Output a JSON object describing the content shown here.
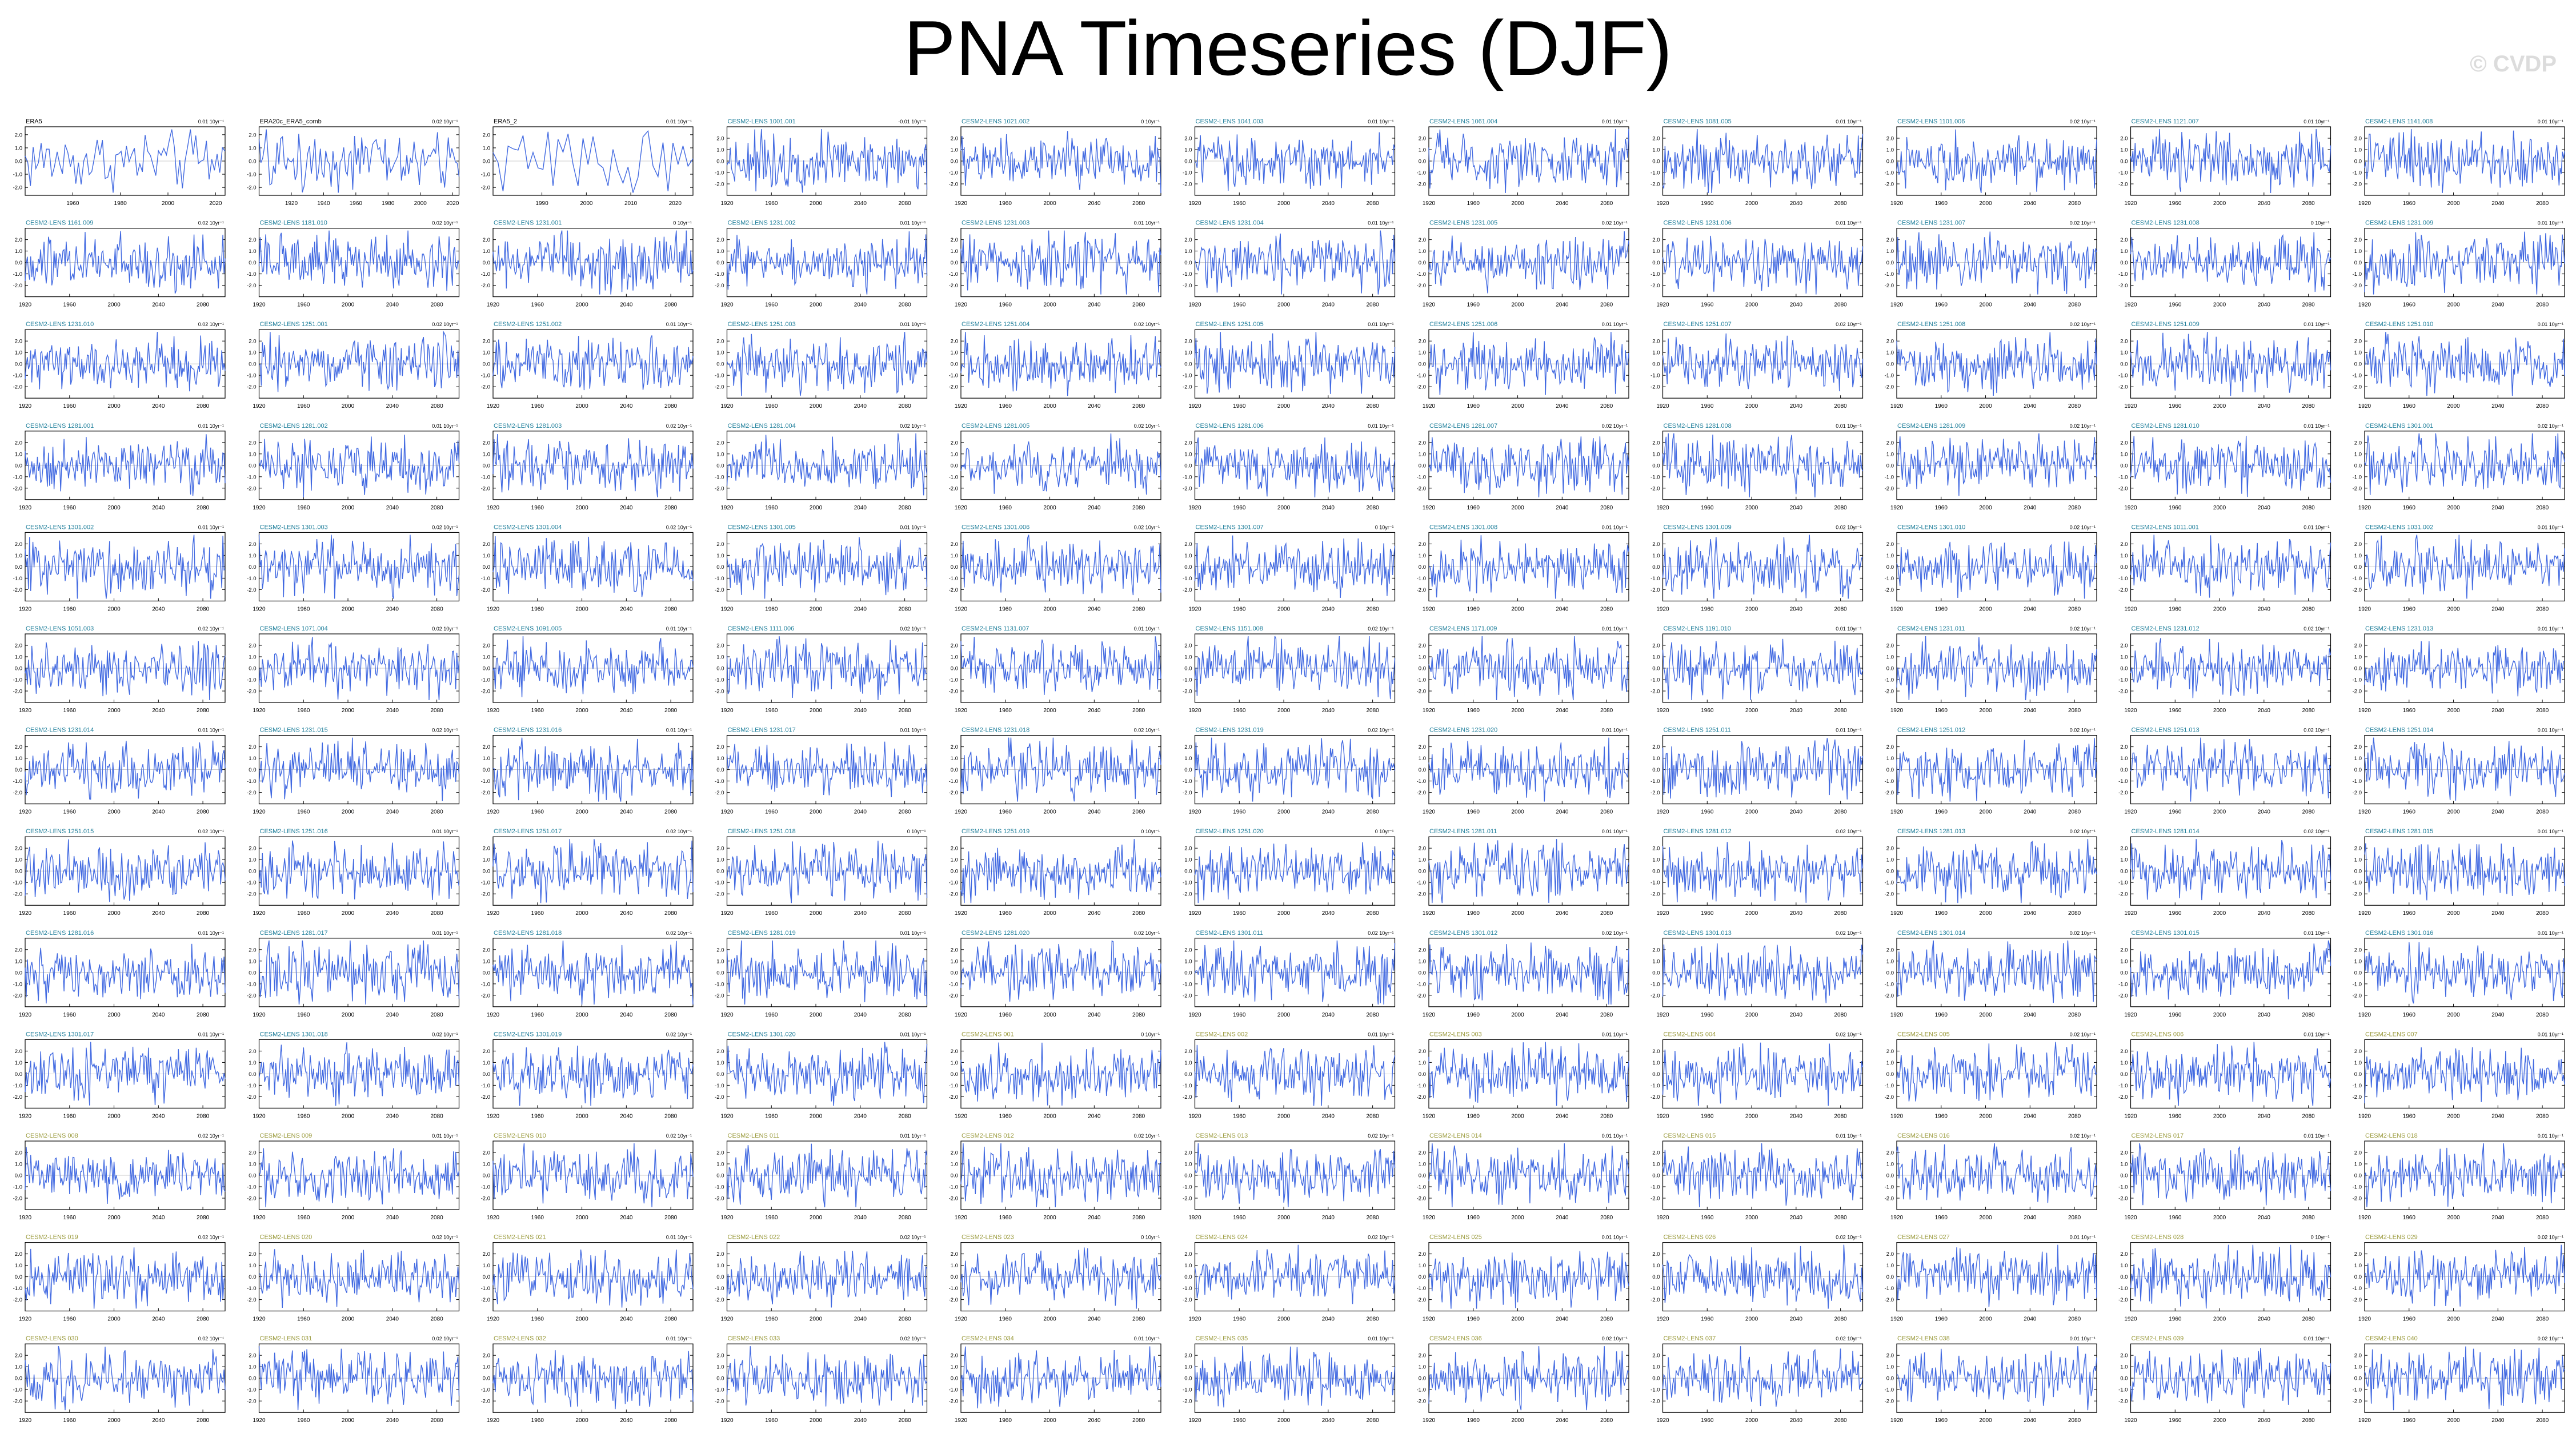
{
  "title": "PNA Timeseries (DJF)",
  "watermark": "© CVDP",
  "colors": {
    "line": "#4169e1",
    "label_obs": "#000000",
    "label_teal": "#1f7f9b",
    "label_green": "#3e8a5a",
    "label_olive": "#9a9a3c",
    "axis": "#000000"
  },
  "chart_data": {
    "type": "line",
    "layout": "small-multiples",
    "grid": false,
    "series_style": "line",
    "panels": [
      {
        "name": "ERA5",
        "trend": "0.01 10yr⁻¹",
        "x_ticks": [
          1960,
          1980,
          2000,
          2020
        ],
        "y_ticks": [
          2.0,
          1.0,
          0.0,
          -1.0,
          -2.0
        ],
        "xlim": [
          1940,
          2024
        ],
        "label_color": "label_obs"
      },
      {
        "name": "ERA20c_ERA5_comb",
        "trend": "0.02 10yr⁻¹",
        "x_ticks": [
          1920,
          1940,
          1960,
          1980,
          2000,
          2020
        ],
        "y_ticks": [
          2.0,
          1.0,
          0.0,
          -1.0,
          -2.0
        ],
        "xlim": [
          1900,
          2024
        ],
        "label_color": "label_obs"
      },
      {
        "name": "ERA5_2",
        "trend": "0.01 10yr⁻¹",
        "x_ticks": [
          1990,
          2000,
          2010,
          2020
        ],
        "y_ticks": [
          2.0,
          1.0,
          0.0,
          -1.0,
          -2.0
        ],
        "xlim": [
          1979,
          2024
        ],
        "label_color": "label_obs"
      },
      {
        "name": "CESM2-LENS 1001.001",
        "trend": "-0.01 10yr⁻¹"
      },
      {
        "name": "CESM2-LENS 1021.002",
        "trend": "0 10yr⁻¹"
      },
      {
        "name": "CESM2-LENS 1041.003",
        "trend": "0.01 10yr⁻¹"
      },
      {
        "name": "CESM2-LENS 1061.004",
        "trend": "0.01 10yr⁻¹"
      },
      {
        "name": "CESM2-LENS 1081.005",
        "trend": "0.01 10yr⁻¹"
      },
      {
        "name": "CESM2-LENS 1101.006",
        "trend": "0.02 10yr⁻¹"
      },
      {
        "name": "CESM2-LENS 1121.007",
        "trend": "0.01 10yr⁻¹"
      },
      {
        "name": "CESM2-LENS 1141.008",
        "trend": "0.01 10yr⁻¹"
      },
      {
        "name": "CESM2-LENS 1161.009",
        "trend": "0.02 10yr⁻¹"
      },
      {
        "name": "CESM2-LENS 1181.010",
        "trend": "0.02 10yr⁻¹"
      },
      {
        "name": "CESM2-LENS 1231.001",
        "trend": "0 10yr⁻¹"
      },
      {
        "name": "CESM2-LENS 1231.002",
        "trend": "0.01 10yr⁻¹"
      },
      {
        "name": "CESM2-LENS 1231.003",
        "trend": "0.01 10yr⁻¹"
      },
      {
        "name": "CESM2-LENS 1231.004",
        "trend": "0.01 10yr⁻¹"
      },
      {
        "name": "CESM2-LENS 1231.005",
        "trend": "0.02 10yr⁻¹"
      },
      {
        "name": "CESM2-LENS 1231.006",
        "trend": "0.01 10yr⁻¹"
      },
      {
        "name": "CESM2-LENS 1231.007",
        "trend": "0.02 10yr⁻¹"
      },
      {
        "name": "CESM2-LENS 1231.008",
        "trend": "0 10yr⁻¹"
      },
      {
        "name": "CESM2-LENS 1231.009",
        "trend": "0.01 10yr⁻¹"
      },
      {
        "name": "CESM2-LENS 1231.010",
        "trend": "0.02 10yr⁻¹"
      },
      {
        "name": "CESM2-LENS 1251.001",
        "trend": "0.02 10yr⁻¹"
      },
      {
        "name": "CESM2-LENS 1251.002",
        "trend": "0.01 10yr⁻¹"
      },
      {
        "name": "CESM2-LENS 1251.003",
        "trend": "0.01 10yr⁻¹"
      },
      {
        "name": "CESM2-LENS 1251.004",
        "trend": "0.02 10yr⁻¹"
      },
      {
        "name": "CESM2-LENS 1251.005",
        "trend": "0.01 10yr⁻¹"
      },
      {
        "name": "CESM2-LENS 1251.006",
        "trend": "0.01 10yr⁻¹"
      },
      {
        "name": "CESM2-LENS 1251.007",
        "trend": "0.02 10yr⁻¹"
      },
      {
        "name": "CESM2-LENS 1251.008",
        "trend": "0.02 10yr⁻¹"
      },
      {
        "name": "CESM2-LENS 1251.009",
        "trend": "0.01 10yr⁻¹"
      },
      {
        "name": "CESM2-LENS 1251.010",
        "trend": "0.01 10yr⁻¹"
      },
      {
        "name": "CESM2-LENS 1281.001",
        "trend": "0.01 10yr⁻¹"
      },
      {
        "name": "CESM2-LENS 1281.002",
        "trend": "0.01 10yr⁻¹"
      },
      {
        "name": "CESM2-LENS 1281.003",
        "trend": "0.02 10yr⁻¹"
      },
      {
        "name": "CESM2-LENS 1281.004",
        "trend": "0.02 10yr⁻¹"
      },
      {
        "name": "CESM2-LENS 1281.005",
        "trend": "0.02 10yr⁻¹"
      },
      {
        "name": "CESM2-LENS 1281.006",
        "trend": "0.01 10yr⁻¹"
      },
      {
        "name": "CESM2-LENS 1281.007",
        "trend": "0.02 10yr⁻¹"
      },
      {
        "name": "CESM2-LENS 1281.008",
        "trend": "0.01 10yr⁻¹"
      },
      {
        "name": "CESM2-LENS 1281.009",
        "trend": "0.02 10yr⁻¹"
      },
      {
        "name": "CESM2-LENS 1281.010",
        "trend": "0.01 10yr⁻¹"
      },
      {
        "name": "CESM2-LENS 1301.001",
        "trend": "0.02 10yr⁻¹"
      },
      {
        "name": "CESM2-LENS 1301.002",
        "trend": "0.01 10yr⁻¹"
      },
      {
        "name": "CESM2-LENS 1301.003",
        "trend": "0.02 10yr⁻¹"
      },
      {
        "name": "CESM2-LENS 1301.004",
        "trend": "0.02 10yr⁻¹"
      },
      {
        "name": "CESM2-LENS 1301.005",
        "trend": "0.01 10yr⁻¹"
      },
      {
        "name": "CESM2-LENS 1301.006",
        "trend": "0.02 10yr⁻¹"
      },
      {
        "name": "CESM2-LENS 1301.007",
        "trend": "0 10yr⁻¹"
      },
      {
        "name": "CESM2-LENS 1301.008",
        "trend": "0.01 10yr⁻¹"
      },
      {
        "name": "CESM2-LENS 1301.009",
        "trend": "0.02 10yr⁻¹"
      },
      {
        "name": "CESM2-LENS 1301.010",
        "trend": "0.02 10yr⁻¹"
      },
      {
        "name": "CESM2-LENS 1011.001",
        "trend": "0.01 10yr⁻¹"
      },
      {
        "name": "CESM2-LENS 1031.002",
        "trend": "0.01 10yr⁻¹"
      },
      {
        "name": "CESM2-LENS 1051.003",
        "trend": "0.02 10yr⁻¹"
      },
      {
        "name": "CESM2-LENS 1071.004",
        "trend": "0.02 10yr⁻¹"
      },
      {
        "name": "CESM2-LENS 1091.005",
        "trend": "0.01 10yr⁻¹"
      },
      {
        "name": "CESM2-LENS 1111.006",
        "trend": "0.02 10yr⁻¹"
      },
      {
        "name": "CESM2-LENS 1131.007",
        "trend": "0.01 10yr⁻¹"
      },
      {
        "name": "CESM2-LENS 1151.008",
        "trend": "0.02 10yr⁻¹"
      },
      {
        "name": "CESM2-LENS 1171.009",
        "trend": "0.01 10yr⁻¹"
      },
      {
        "name": "CESM2-LENS 1191.010",
        "trend": "0.01 10yr⁻¹"
      },
      {
        "name": "CESM2-LENS 1231.011",
        "trend": "0.02 10yr⁻¹"
      },
      {
        "name": "CESM2-LENS 1231.012",
        "trend": "0.02 10yr⁻¹"
      },
      {
        "name": "CESM2-LENS 1231.013",
        "trend": "0.01 10yr⁻¹"
      },
      {
        "name": "CESM2-LENS 1231.014",
        "trend": "0.01 10yr⁻¹"
      },
      {
        "name": "CESM2-LENS 1231.015",
        "trend": "0.02 10yr⁻¹"
      },
      {
        "name": "CESM2-LENS 1231.016",
        "trend": "0.01 10yr⁻¹"
      },
      {
        "name": "CESM2-LENS 1231.017",
        "trend": "0.01 10yr⁻¹"
      },
      {
        "name": "CESM2-LENS 1231.018",
        "trend": "0.02 10yr⁻¹"
      },
      {
        "name": "CESM2-LENS 1231.019",
        "trend": "0.02 10yr⁻¹"
      },
      {
        "name": "CESM2-LENS 1231.020",
        "trend": "0.01 10yr⁻¹"
      },
      {
        "name": "CESM2-LENS 1251.011",
        "trend": "0.01 10yr⁻¹"
      },
      {
        "name": "CESM2-LENS 1251.012",
        "trend": "0.02 10yr⁻¹"
      },
      {
        "name": "CESM2-LENS 1251.013",
        "trend": "0.02 10yr⁻¹"
      },
      {
        "name": "CESM2-LENS 1251.014",
        "trend": "0.01 10yr⁻¹"
      },
      {
        "name": "CESM2-LENS 1251.015",
        "trend": "0.02 10yr⁻¹"
      },
      {
        "name": "CESM2-LENS 1251.016",
        "trend": "0.01 10yr⁻¹"
      },
      {
        "name": "CESM2-LENS 1251.017",
        "trend": "0.02 10yr⁻¹"
      },
      {
        "name": "CESM2-LENS 1251.018",
        "trend": "0 10yr⁻¹"
      },
      {
        "name": "CESM2-LENS 1251.019",
        "trend": "0 10yr⁻¹"
      },
      {
        "name": "CESM2-LENS 1251.020",
        "trend": "0 10yr⁻¹"
      },
      {
        "name": "CESM2-LENS 1281.011",
        "trend": "0.01 10yr⁻¹"
      },
      {
        "name": "CESM2-LENS 1281.012",
        "trend": "0.02 10yr⁻¹"
      },
      {
        "name": "CESM2-LENS 1281.013",
        "trend": "0.02 10yr⁻¹"
      },
      {
        "name": "CESM2-LENS 1281.014",
        "trend": "0.02 10yr⁻¹"
      },
      {
        "name": "CESM2-LENS 1281.015",
        "trend": "0.01 10yr⁻¹"
      },
      {
        "name": "CESM2-LENS 1281.016",
        "trend": "0.01 10yr⁻¹"
      },
      {
        "name": "CESM2-LENS 1281.017",
        "trend": "0.01 10yr⁻¹"
      },
      {
        "name": "CESM2-LENS 1281.018",
        "trend": "0.02 10yr⁻¹"
      },
      {
        "name": "CESM2-LENS 1281.019",
        "trend": "0.01 10yr⁻¹"
      },
      {
        "name": "CESM2-LENS 1281.020",
        "trend": "0.02 10yr⁻¹"
      },
      {
        "name": "CESM2-LENS 1301.011",
        "trend": "0.02 10yr⁻¹"
      },
      {
        "name": "CESM2-LENS 1301.012",
        "trend": "0.02 10yr⁻¹"
      },
      {
        "name": "CESM2-LENS 1301.013",
        "trend": "0.02 10yr⁻¹"
      },
      {
        "name": "CESM2-LENS 1301.014",
        "trend": "0.02 10yr⁻¹"
      },
      {
        "name": "CESM2-LENS 1301.015",
        "trend": "0.01 10yr⁻¹"
      },
      {
        "name": "CESM2-LENS 1301.016",
        "trend": "0.01 10yr⁻¹"
      },
      {
        "name": "CESM2-LENS 1301.017",
        "trend": "0.01 10yr⁻¹"
      },
      {
        "name": "CESM2-LENS 1301.018",
        "trend": "0.02 10yr⁻¹"
      },
      {
        "name": "CESM2-LENS 1301.019",
        "trend": "0.02 10yr⁻¹"
      },
      {
        "name": "CESM2-LENS 1301.020",
        "trend": "0.01 10yr⁻¹"
      },
      {
        "name": "CESM2-LENS 001",
        "trend": "0 10yr⁻¹",
        "label_color": "label_olive"
      },
      {
        "name": "CESM2-LENS 002",
        "trend": "0.01 10yr⁻¹",
        "label_color": "label_olive"
      },
      {
        "name": "CESM2-LENS 003",
        "trend": "0.01 10yr⁻¹",
        "label_color": "label_olive"
      },
      {
        "name": "CESM2-LENS 004",
        "trend": "0.02 10yr⁻¹",
        "label_color": "label_olive"
      },
      {
        "name": "CESM2-LENS 005",
        "trend": "0.02 10yr⁻¹",
        "label_color": "label_olive"
      },
      {
        "name": "CESM2-LENS 006",
        "trend": "0.01 10yr⁻¹",
        "label_color": "label_olive"
      },
      {
        "name": "CESM2-LENS 007",
        "trend": "0.01 10yr⁻¹",
        "label_color": "label_olive"
      },
      {
        "name": "CESM2-LENS 008",
        "trend": "0.02 10yr⁻¹",
        "label_color": "label_olive"
      },
      {
        "name": "CESM2-LENS 009",
        "trend": "0.01 10yr⁻¹",
        "label_color": "label_olive"
      },
      {
        "name": "CESM2-LENS 010",
        "trend": "0.02 10yr⁻¹",
        "label_color": "label_olive"
      },
      {
        "name": "CESM2-LENS 011",
        "trend": "0.01 10yr⁻¹",
        "label_color": "label_olive"
      },
      {
        "name": "CESM2-LENS 012",
        "trend": "0.02 10yr⁻¹",
        "label_color": "label_olive"
      },
      {
        "name": "CESM2-LENS 013",
        "trend": "0.02 10yr⁻¹",
        "label_color": "label_olive"
      },
      {
        "name": "CESM2-LENS 014",
        "trend": "0.01 10yr⁻¹",
        "label_color": "label_olive"
      },
      {
        "name": "CESM2-LENS 015",
        "trend": "0.01 10yr⁻¹",
        "label_color": "label_olive"
      },
      {
        "name": "CESM2-LENS 016",
        "trend": "0.02 10yr⁻¹",
        "label_color": "label_olive"
      },
      {
        "name": "CESM2-LENS 017",
        "trend": "0.01 10yr⁻¹",
        "label_color": "label_olive"
      },
      {
        "name": "CESM2-LENS 018",
        "trend": "0.01 10yr⁻¹",
        "label_color": "label_olive"
      },
      {
        "name": "CESM2-LENS 019",
        "trend": "0.02 10yr⁻¹",
        "label_color": "label_olive"
      },
      {
        "name": "CESM2-LENS 020",
        "trend": "0.02 10yr⁻¹",
        "label_color": "label_olive"
      },
      {
        "name": "CESM2-LENS 021",
        "trend": "0.01 10yr⁻¹",
        "label_color": "label_olive"
      },
      {
        "name": "CESM2-LENS 022",
        "trend": "0.02 10yr⁻¹",
        "label_color": "label_olive"
      },
      {
        "name": "CESM2-LENS 023",
        "trend": "0 10yr⁻¹",
        "label_color": "label_olive"
      },
      {
        "name": "CESM2-LENS 024",
        "trend": "0.02 10yr⁻¹",
        "label_color": "label_olive"
      },
      {
        "name": "CESM2-LENS 025",
        "trend": "0.01 10yr⁻¹",
        "label_color": "label_olive"
      },
      {
        "name": "CESM2-LENS 026",
        "trend": "0.02 10yr⁻¹",
        "label_color": "label_olive"
      },
      {
        "name": "CESM2-LENS 027",
        "trend": "0.01 10yr⁻¹",
        "label_color": "label_olive"
      },
      {
        "name": "CESM2-LENS 028",
        "trend": "0 10yr⁻¹",
        "label_color": "label_olive"
      },
      {
        "name": "CESM2-LENS 029",
        "trend": "0.02 10yr⁻¹",
        "label_color": "label_olive"
      },
      {
        "name": "CESM2-LENS 030",
        "trend": "0.02 10yr⁻¹",
        "label_color": "label_olive"
      },
      {
        "name": "CESM2-LENS 031",
        "trend": "0.02 10yr⁻¹",
        "label_color": "label_olive"
      },
      {
        "name": "CESM2-LENS 032",
        "trend": "0.01 10yr⁻¹",
        "label_color": "label_olive"
      },
      {
        "name": "CESM2-LENS 033",
        "trend": "0.02 10yr⁻¹",
        "label_color": "label_olive"
      },
      {
        "name": "CESM2-LENS 034",
        "trend": "0.01 10yr⁻¹",
        "label_color": "label_olive"
      },
      {
        "name": "CESM2-LENS 035",
        "trend": "0.01 10yr⁻¹",
        "label_color": "label_olive"
      },
      {
        "name": "CESM2-LENS 036",
        "trend": "0.02 10yr⁻¹",
        "label_color": "label_olive"
      },
      {
        "name": "CESM2-LENS 037",
        "trend": "0.02 10yr⁻¹",
        "label_color": "label_olive"
      },
      {
        "name": "CESM2-LENS 038",
        "trend": "0.01 10yr⁻¹",
        "label_color": "label_olive"
      },
      {
        "name": "CESM2-LENS 039",
        "trend": "0.01 10yr⁻¹",
        "label_color": "label_olive"
      },
      {
        "name": "CESM2-LENS 040",
        "trend": "0.02 10yr⁻¹",
        "label_color": "label_olive"
      }
    ],
    "default_model_panel": {
      "x_ticks": [
        1920,
        1960,
        2000,
        2040,
        2080
      ],
      "y_ticks": [
        2.0,
        1.0,
        0.0,
        -1.0,
        -2.0
      ],
      "xlim": [
        1920,
        2100
      ],
      "ylim": [
        -3,
        3
      ],
      "label_color": "label_teal"
    },
    "obs_ylim": [
      -2.6,
      2.6
    ]
  }
}
